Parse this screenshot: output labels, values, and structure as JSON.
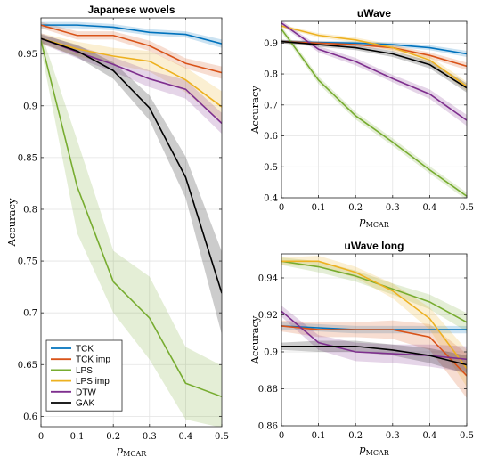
{
  "chart_data": [
    {
      "type": "line",
      "title": "Japanese wovels",
      "xlabel": "p_MCAR",
      "ylabel": "Accuracy",
      "xlim": [
        0,
        0.5
      ],
      "ylim": [
        0.59,
        0.985
      ],
      "xticks": [
        0,
        0.1,
        0.2,
        0.3,
        0.4,
        0.5
      ],
      "xtick_labels": [
        "0",
        "0.1",
        "0.2",
        "0.3",
        "0.4",
        "0.5"
      ],
      "yticks": [
        0.6,
        0.65,
        0.7,
        0.75,
        0.8,
        0.85,
        0.9,
        0.95
      ],
      "ytick_labels": [
        "0.6",
        "0.65",
        "0.7",
        "0.75",
        "0.8",
        "0.85",
        "0.9",
        "0.95"
      ],
      "grid": true,
      "legend": "bottom-left",
      "x": [
        0,
        0.1,
        0.2,
        0.3,
        0.4,
        0.5
      ],
      "series": [
        {
          "name": "TCK",
          "color": "#0072bd",
          "values": [
            0.978,
            0.978,
            0.976,
            0.971,
            0.969,
            0.96
          ],
          "band": [
            0.003,
            0.003,
            0.003,
            0.003,
            0.003,
            0.004
          ]
        },
        {
          "name": "TCK imp",
          "color": "#d95319",
          "values": [
            0.978,
            0.968,
            0.968,
            0.958,
            0.941,
            0.932
          ],
          "band": [
            0.003,
            0.004,
            0.004,
            0.005,
            0.005,
            0.006
          ]
        },
        {
          "name": "LPS",
          "color": "#77ac30",
          "values": [
            0.963,
            0.822,
            0.73,
            0.695,
            0.632,
            0.619
          ],
          "band": [
            0.008,
            0.045,
            0.03,
            0.04,
            0.035,
            0.03
          ]
        },
        {
          "name": "LPS imp",
          "color": "#edb120",
          "values": [
            0.965,
            0.955,
            0.948,
            0.943,
            0.925,
            0.899
          ],
          "band": [
            0.005,
            0.007,
            0.008,
            0.01,
            0.012,
            0.015
          ]
        },
        {
          "name": "DTW",
          "color": "#7e2f8e",
          "values": [
            0.965,
            0.952,
            0.94,
            0.926,
            0.916,
            0.883
          ],
          "band": [
            0.005,
            0.006,
            0.007,
            0.008,
            0.009,
            0.01
          ]
        },
        {
          "name": "GAK",
          "color": "#000000",
          "values": [
            0.965,
            0.953,
            0.934,
            0.898,
            0.831,
            0.719
          ],
          "band": [
            0.004,
            0.006,
            0.008,
            0.012,
            0.02,
            0.04
          ]
        }
      ]
    },
    {
      "type": "line",
      "title": "uWave",
      "xlabel": "p_MCAR",
      "ylabel": "Accuracy",
      "xlim": [
        0,
        0.5
      ],
      "ylim": [
        0.4,
        0.97
      ],
      "xticks": [
        0,
        0.1,
        0.2,
        0.3,
        0.4,
        0.5
      ],
      "xtick_labels": [
        "0",
        "0.1",
        "0.2",
        "0.3",
        "0.4",
        "0.5"
      ],
      "yticks": [
        0.4,
        0.5,
        0.6,
        0.7,
        0.8,
        0.9
      ],
      "ytick_labels": [
        "0.4",
        "0.5",
        "0.6",
        "0.7",
        "0.8",
        "0.9"
      ],
      "grid": true,
      "x": [
        0,
        0.1,
        0.2,
        0.3,
        0.4,
        0.5
      ],
      "series": [
        {
          "name": "TCK",
          "color": "#0072bd",
          "values": [
            0.905,
            0.902,
            0.9,
            0.895,
            0.885,
            0.865
          ],
          "band": [
            0.005,
            0.005,
            0.006,
            0.007,
            0.008,
            0.01
          ]
        },
        {
          "name": "TCK imp",
          "color": "#d95319",
          "values": [
            0.905,
            0.9,
            0.895,
            0.885,
            0.86,
            0.825
          ],
          "band": [
            0.005,
            0.006,
            0.007,
            0.008,
            0.01,
            0.012
          ]
        },
        {
          "name": "LPS",
          "color": "#77ac30",
          "values": [
            0.945,
            0.78,
            0.665,
            0.58,
            0.49,
            0.405
          ],
          "band": [
            0.01,
            0.012,
            0.012,
            0.012,
            0.012,
            0.012
          ]
        },
        {
          "name": "LPS imp",
          "color": "#edb120",
          "values": [
            0.955,
            0.925,
            0.91,
            0.885,
            0.845,
            0.76
          ],
          "band": [
            0.005,
            0.007,
            0.008,
            0.01,
            0.012,
            0.015
          ]
        },
        {
          "name": "DTW",
          "color": "#7e2f8e",
          "values": [
            0.965,
            0.88,
            0.84,
            0.785,
            0.735,
            0.65
          ],
          "band": [
            0.008,
            0.01,
            0.012,
            0.012,
            0.015,
            0.018
          ]
        },
        {
          "name": "GAK",
          "color": "#000000",
          "values": [
            0.905,
            0.895,
            0.885,
            0.865,
            0.83,
            0.755
          ],
          "band": [
            0.006,
            0.007,
            0.008,
            0.01,
            0.012,
            0.015
          ]
        }
      ]
    },
    {
      "type": "line",
      "title": "uWave long",
      "xlabel": "p_MCAR",
      "ylabel": "Accuracy",
      "xlim": [
        0,
        0.5
      ],
      "ylim": [
        0.86,
        0.953
      ],
      "xticks": [
        0,
        0.1,
        0.2,
        0.3,
        0.4,
        0.5
      ],
      "xtick_labels": [
        "0",
        "0.1",
        "0.2",
        "0.3",
        "0.4",
        "0.5"
      ],
      "yticks": [
        0.86,
        0.88,
        0.9,
        0.92,
        0.94
      ],
      "ytick_labels": [
        "0.86",
        "0.88",
        "0.9",
        "0.92",
        "0.94"
      ],
      "grid": true,
      "x": [
        0,
        0.1,
        0.2,
        0.3,
        0.4,
        0.5
      ],
      "series": [
        {
          "name": "TCK",
          "color": "#0072bd",
          "values": [
            0.914,
            0.913,
            0.912,
            0.912,
            0.912,
            0.912
          ],
          "band": [
            0.002,
            0.002,
            0.002,
            0.002,
            0.002,
            0.002
          ]
        },
        {
          "name": "TCK imp",
          "color": "#d95319",
          "values": [
            0.914,
            0.912,
            0.912,
            0.912,
            0.908,
            0.887
          ],
          "band": [
            0.003,
            0.004,
            0.004,
            0.005,
            0.007,
            0.012
          ]
        },
        {
          "name": "LPS",
          "color": "#77ac30",
          "values": [
            0.949,
            0.946,
            0.941,
            0.934,
            0.927,
            0.916
          ],
          "band": [
            0.002,
            0.003,
            0.003,
            0.003,
            0.004,
            0.005
          ]
        },
        {
          "name": "LPS imp",
          "color": "#edb120",
          "values": [
            0.949,
            0.949,
            0.943,
            0.933,
            0.918,
            0.891
          ],
          "band": [
            0.002,
            0.003,
            0.003,
            0.004,
            0.006,
            0.01
          ]
        },
        {
          "name": "DTW",
          "color": "#7e2f8e",
          "values": [
            0.922,
            0.905,
            0.9,
            0.899,
            0.898,
            0.896
          ],
          "band": [
            0.003,
            0.004,
            0.005,
            0.005,
            0.006,
            0.007
          ]
        },
        {
          "name": "GAK",
          "color": "#000000",
          "values": [
            0.903,
            0.903,
            0.903,
            0.901,
            0.898,
            0.893
          ],
          "band": [
            0.002,
            0.003,
            0.003,
            0.003,
            0.004,
            0.005
          ]
        }
      ]
    }
  ]
}
